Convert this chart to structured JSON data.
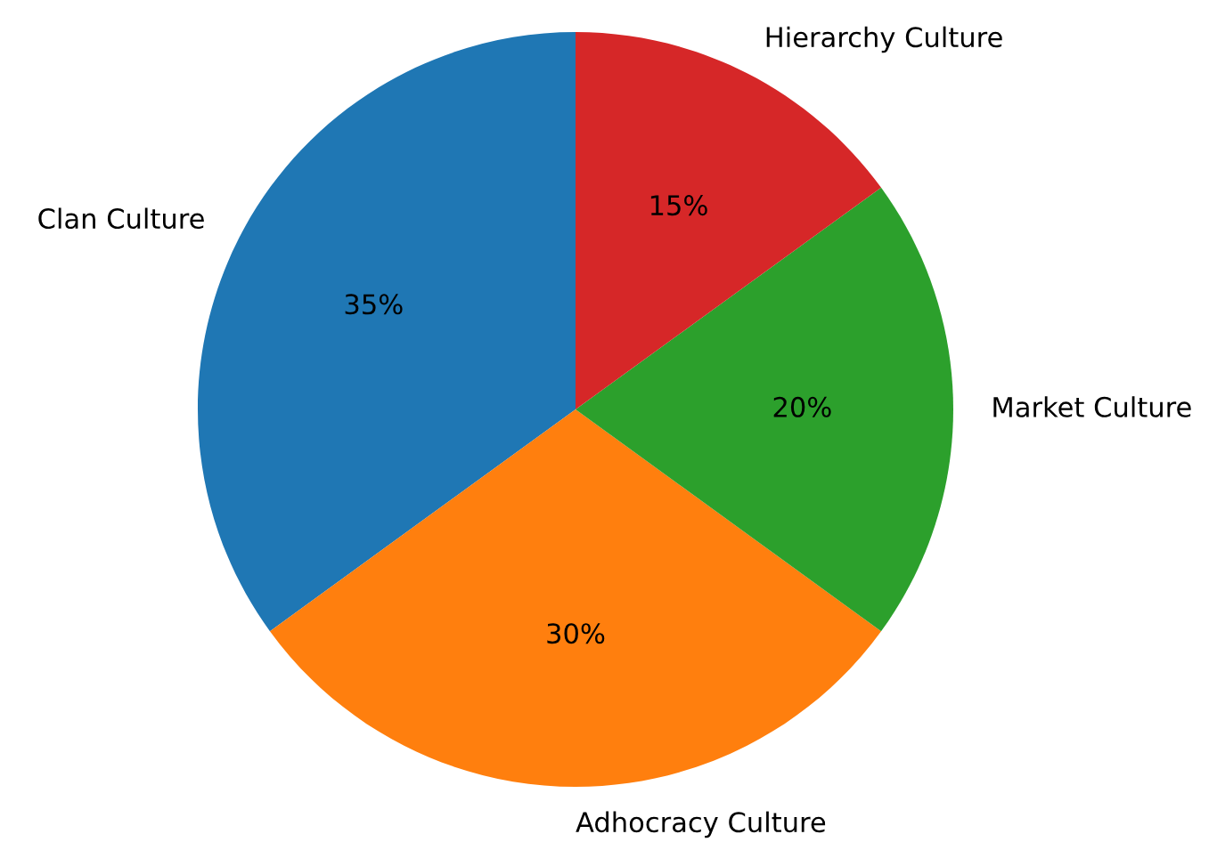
{
  "chart_data": {
    "type": "pie",
    "categories": [
      "Clan Culture",
      "Adhocracy Culture",
      "Market Culture",
      "Hierarchy Culture"
    ],
    "values": [
      35,
      30,
      20,
      15
    ],
    "colors": [
      "#1f77b4",
      "#ff7f0e",
      "#2ca02c",
      "#d62728"
    ],
    "value_labels": [
      "35%",
      "30%",
      "20%",
      "15%"
    ]
  }
}
